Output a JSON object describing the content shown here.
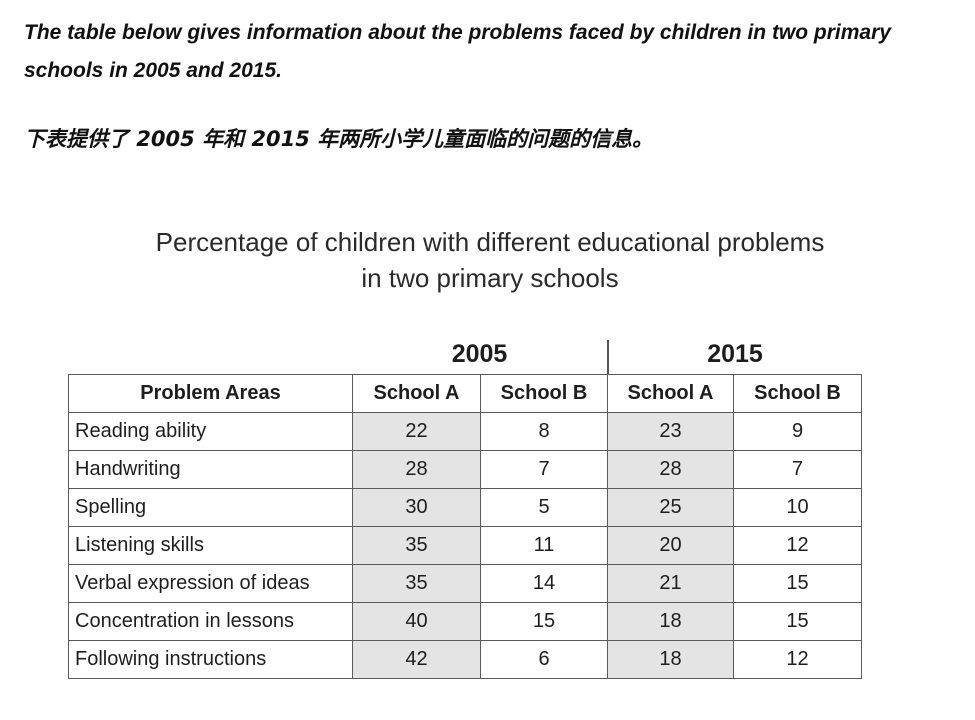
{
  "intro": {
    "english": "The table below gives information about the problems faced by children in two primary schools in 2005 and 2015.",
    "chinese": "下表提供了 2005 年和 2015 年两所小学儿童面临的问题的信息。"
  },
  "chart_data": {
    "type": "table",
    "title_line1": "Percentage of children with different educational problems",
    "title_line2": "in two primary schools",
    "year_groups": [
      "2005",
      "2015"
    ],
    "columns": [
      "Problem Areas",
      "School A",
      "School B",
      "School A",
      "School B"
    ],
    "rows": [
      {
        "area": "Reading ability",
        "values": [
          "22",
          "8",
          "23",
          "9"
        ]
      },
      {
        "area": "Handwriting",
        "values": [
          "28",
          "7",
          "28",
          "7"
        ]
      },
      {
        "area": "Spelling",
        "values": [
          "30",
          "5",
          "25",
          "10"
        ]
      },
      {
        "area": "Listening skills",
        "values": [
          "35",
          "11",
          "20",
          "12"
        ]
      },
      {
        "area": "Verbal expression of ideas",
        "values": [
          "35",
          "14",
          "21",
          "15"
        ]
      },
      {
        "area": "Concentration in lessons",
        "values": [
          "40",
          "15",
          "18",
          "15"
        ]
      },
      {
        "area": "Following instructions",
        "values": [
          "42",
          "6",
          "18",
          "12"
        ]
      }
    ],
    "shaded_color": "#e4e4e4"
  }
}
